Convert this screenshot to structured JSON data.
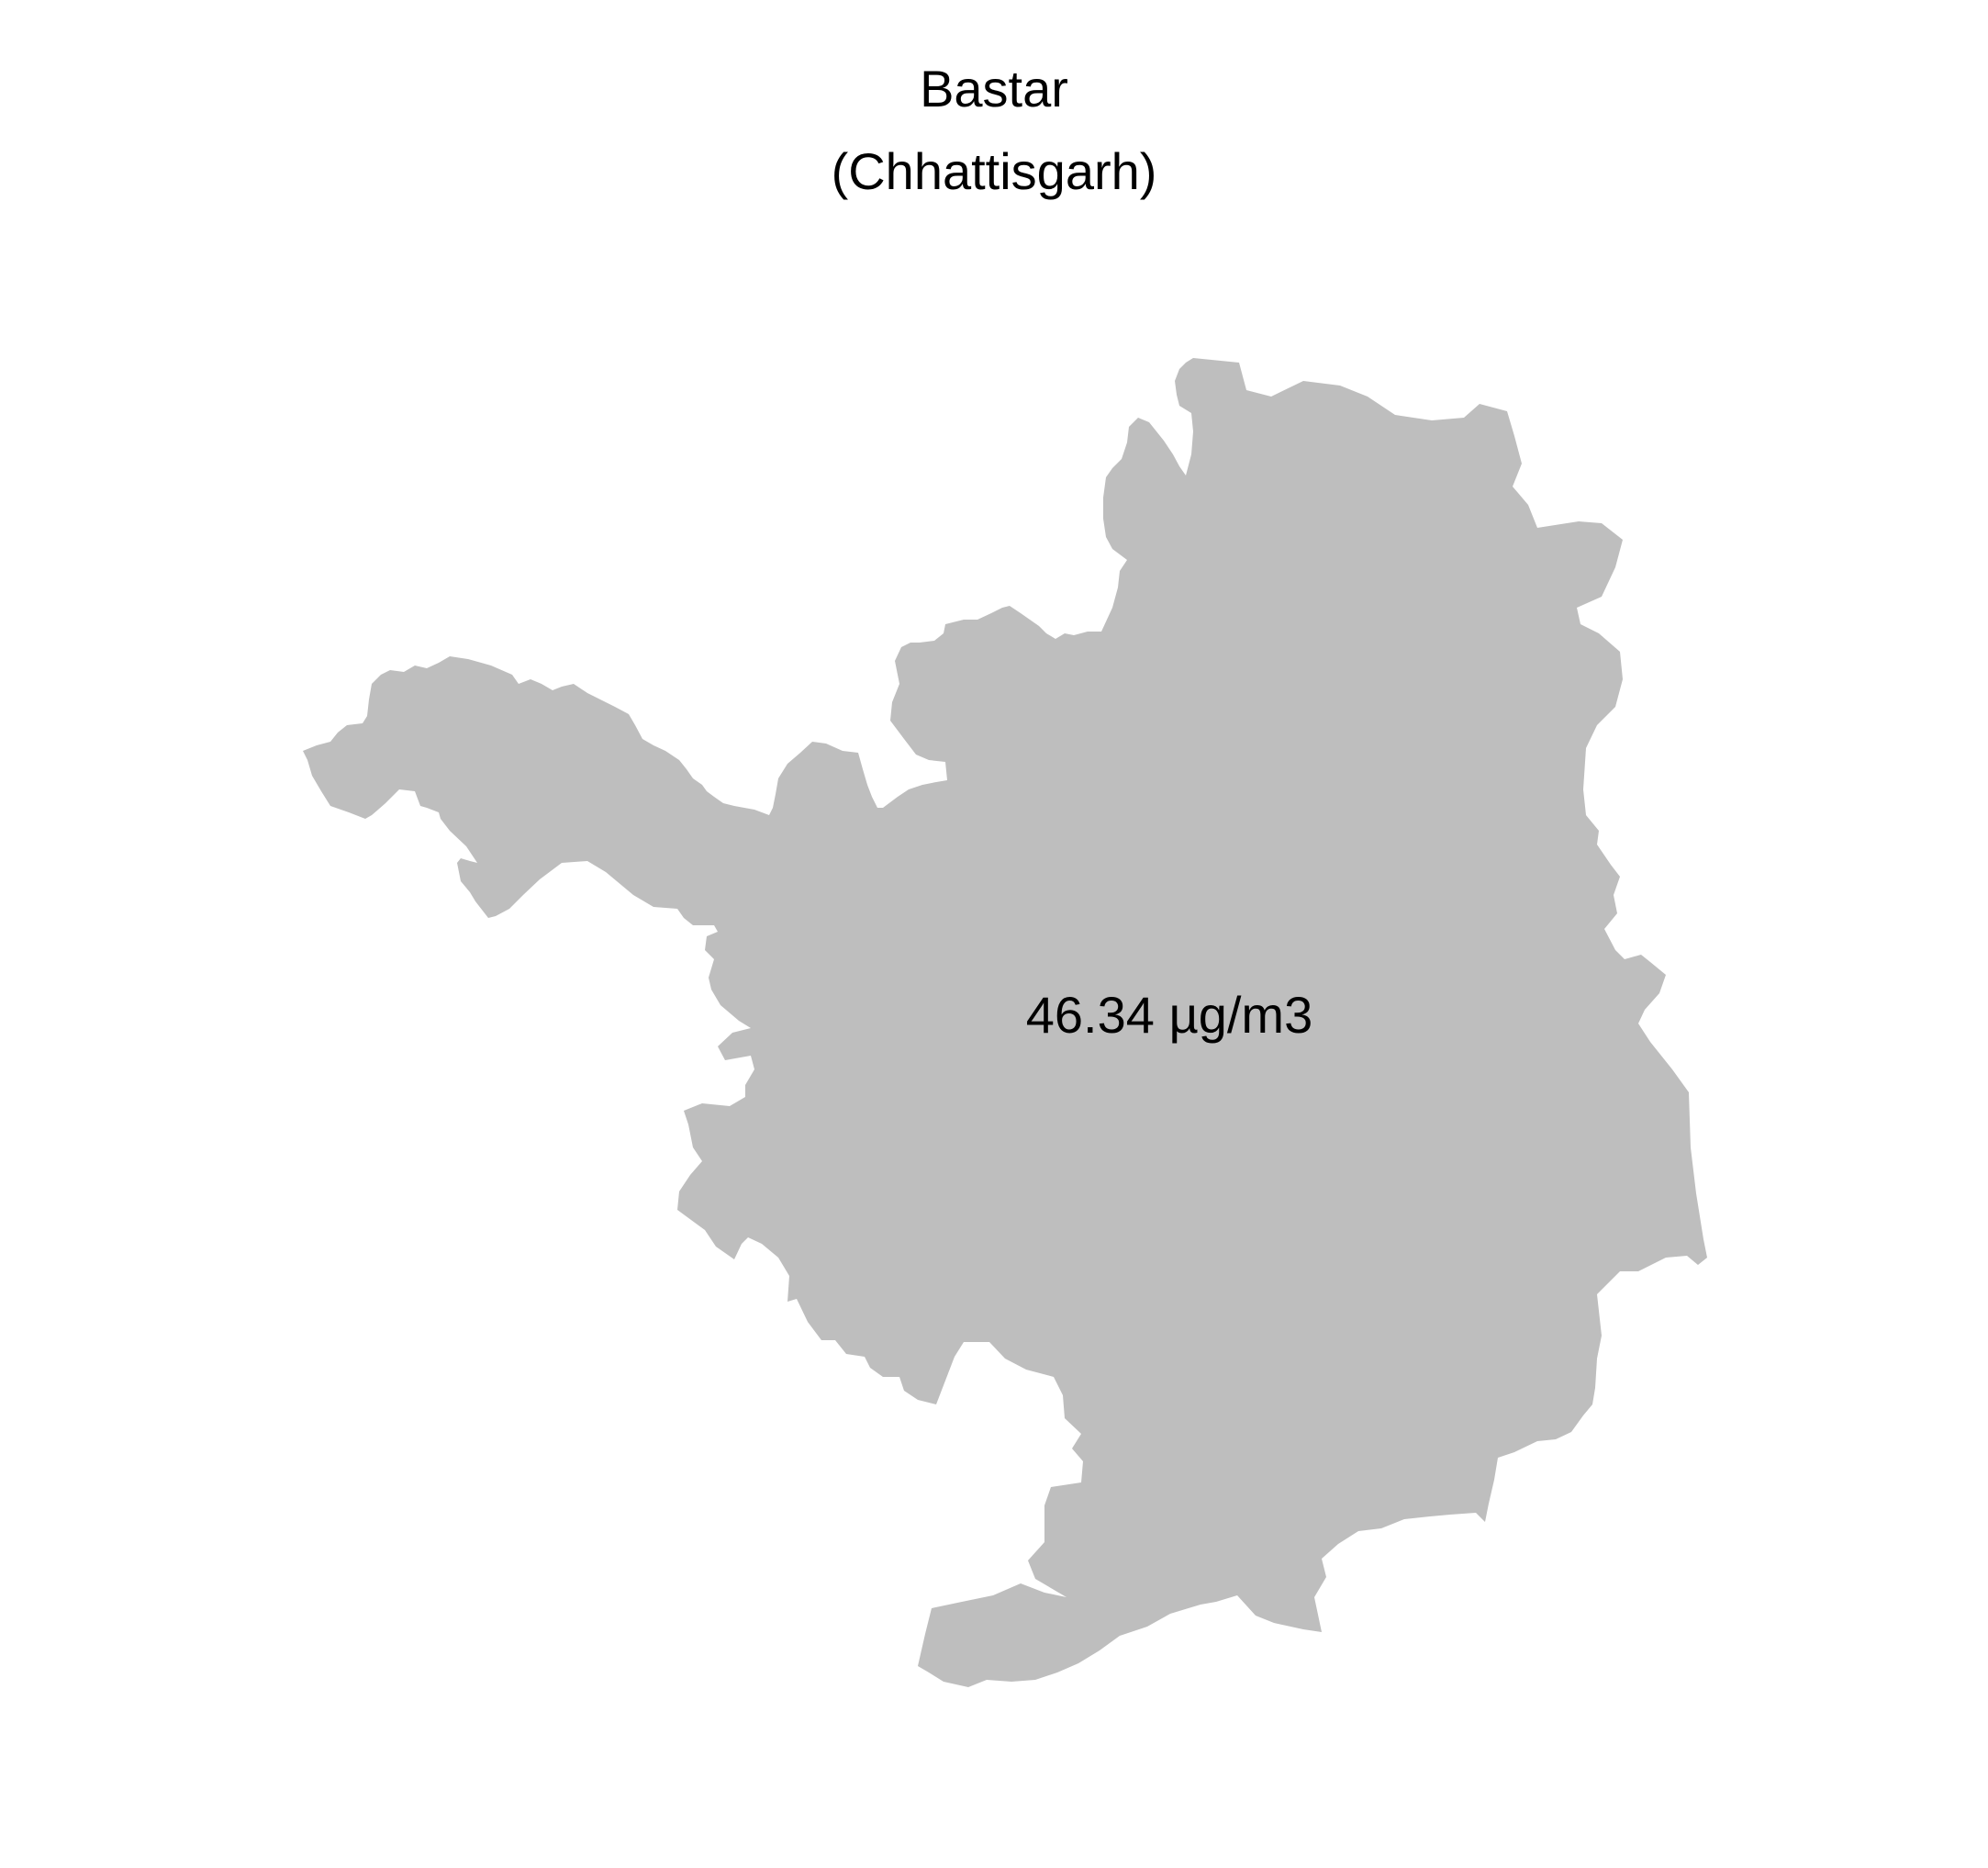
{
  "map": {
    "title": "Bastar",
    "subtitle": "(Chhattisgarh)",
    "region_label": "46.34 µg/m3",
    "fill_color": "#bebebe",
    "text_color": "#000000",
    "background_color": "#ffffff"
  }
}
